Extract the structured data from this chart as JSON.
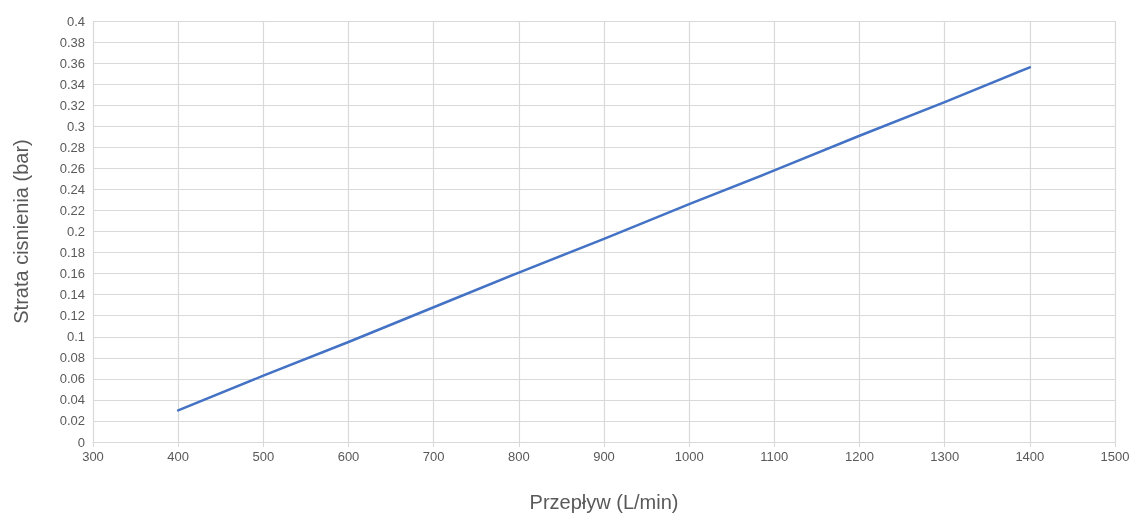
{
  "chart_data": {
    "type": "line",
    "xlabel": "Przepływ (L/min)",
    "ylabel": "Strata cisnienia (bar)",
    "x": [
      400,
      500,
      600,
      700,
      800,
      900,
      1000,
      1100,
      1200,
      1300,
      1400
    ],
    "series": [
      {
        "color": "#4472c4",
        "values": [
          0.03,
          0.063,
          0.095,
          0.128,
          0.161,
          0.193,
          0.226,
          0.258,
          0.291,
          0.323,
          0.356
        ]
      }
    ],
    "xlim": [
      300,
      1500
    ],
    "xticks": [
      300,
      400,
      500,
      600,
      700,
      800,
      900,
      1000,
      1100,
      1200,
      1300,
      1400,
      1500
    ],
    "ylim": [
      0,
      0.4
    ],
    "yticks": [
      0,
      0.02,
      0.04,
      0.06,
      0.08,
      0.1,
      0.12,
      0.14,
      0.16,
      0.18,
      0.2,
      0.22,
      0.24,
      0.26,
      0.28,
      0.3,
      0.32,
      0.34,
      0.36,
      0.38,
      0.4
    ],
    "grid": true,
    "marker": "none",
    "line_style": "solid"
  }
}
